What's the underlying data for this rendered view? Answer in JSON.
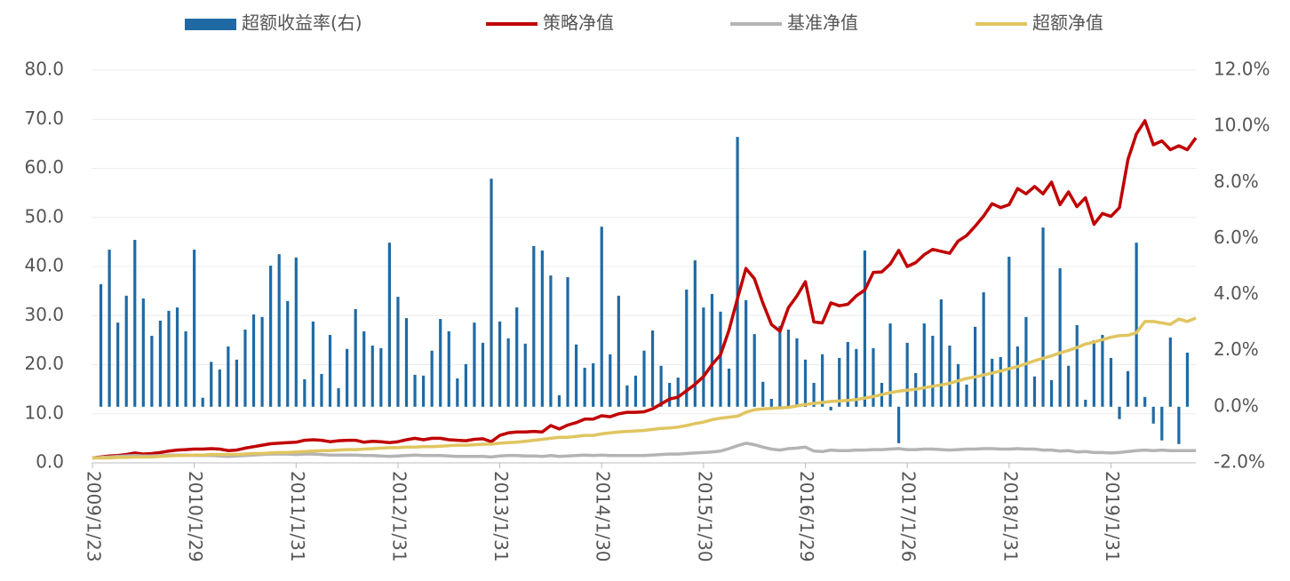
{
  "chart_data": {
    "type": "combo",
    "categories": [
      "2009/1/23",
      null,
      null,
      null,
      null,
      null,
      null,
      null,
      null,
      null,
      null,
      null,
      "2010/1/29",
      null,
      null,
      null,
      null,
      null,
      null,
      null,
      null,
      null,
      null,
      null,
      "2011/1/31",
      null,
      null,
      null,
      null,
      null,
      null,
      null,
      null,
      null,
      null,
      null,
      "2012/1/31",
      null,
      null,
      null,
      null,
      null,
      null,
      null,
      null,
      null,
      null,
      null,
      "2013/1/31",
      null,
      null,
      null,
      null,
      null,
      null,
      null,
      null,
      null,
      null,
      null,
      "2014/1/30",
      null,
      null,
      null,
      null,
      null,
      null,
      null,
      null,
      null,
      null,
      null,
      "2015/1/30",
      null,
      null,
      null,
      null,
      null,
      null,
      null,
      null,
      null,
      null,
      null,
      "2016/1/29",
      null,
      null,
      null,
      null,
      null,
      null,
      null,
      null,
      null,
      null,
      null,
      "2017/1/26",
      null,
      null,
      null,
      null,
      null,
      null,
      null,
      null,
      null,
      null,
      null,
      "2018/1/31",
      null,
      null,
      null,
      null,
      null,
      null,
      null,
      null,
      null,
      null,
      null,
      "2019/1/31",
      null,
      null,
      null,
      null,
      null,
      null,
      null,
      null,
      null,
      null
    ],
    "series": [
      {
        "name": "超额收益率(右)",
        "type": "bar",
        "axis": "y2",
        "color": "#1f6aa5",
        "values": [
          null,
          4.37,
          5.6,
          3.0,
          3.96,
          5.95,
          3.86,
          2.53,
          3.07,
          3.42,
          3.54,
          2.69,
          5.6,
          0.32,
          1.6,
          1.33,
          2.15,
          1.68,
          2.75,
          3.29,
          3.2,
          5.03,
          5.44,
          3.77,
          5.32,
          0.98,
          3.04,
          1.17,
          2.56,
          0.66,
          2.06,
          3.48,
          2.69,
          2.18,
          2.09,
          5.85,
          3.92,
          3.16,
          1.14,
          1.11,
          2.0,
          3.13,
          2.69,
          1.01,
          1.52,
          3.0,
          2.28,
          8.13,
          3.04,
          2.44,
          3.54,
          2.25,
          5.73,
          5.57,
          4.68,
          0.41,
          4.62,
          2.22,
          1.39,
          1.55,
          6.42,
          1.87,
          3.96,
          0.76,
          1.11,
          2.0,
          2.72,
          1.46,
          0.85,
          1.04,
          4.18,
          5.22,
          3.54,
          4.02,
          3.39,
          1.36,
          9.62,
          3.8,
          2.59,
          0.89,
          0.28,
          2.88,
          2.75,
          2.44,
          1.68,
          0.85,
          1.87,
          -0.13,
          1.74,
          2.31,
          2.06,
          5.57,
          2.09,
          0.85,
          2.97,
          -1.3,
          2.28,
          1.2,
          2.97,
          2.53,
          3.83,
          2.18,
          1.52,
          0.79,
          2.85,
          4.08,
          1.71,
          1.77,
          5.35,
          2.15,
          3.2,
          1.08,
          6.39,
          0.95,
          4.94,
          1.46,
          2.91,
          0.25,
          2.37,
          2.56,
          1.74,
          -0.44,
          1.27,
          5.85,
          0.35,
          -0.6,
          -1.2,
          2.47,
          -1.33,
          1.93,
          null
        ]
      },
      {
        "name": "策略净值",
        "type": "line",
        "color": "#c00000",
        "values": [
          1.0,
          1.2,
          1.4,
          1.5,
          1.7,
          2.0,
          1.8,
          1.9,
          2.1,
          2.4,
          2.6,
          2.7,
          2.8,
          2.8,
          2.9,
          2.8,
          2.5,
          2.6,
          3.0,
          3.3,
          3.6,
          3.9,
          4.0,
          4.1,
          4.2,
          4.6,
          4.7,
          4.6,
          4.3,
          4.5,
          4.6,
          4.6,
          4.2,
          4.4,
          4.3,
          4.1,
          4.3,
          4.7,
          5.0,
          4.7,
          5.0,
          5.0,
          4.7,
          4.6,
          4.5,
          4.8,
          4.9,
          4.3,
          5.6,
          6.1,
          6.3,
          6.3,
          6.4,
          6.3,
          7.6,
          6.9,
          7.7,
          8.2,
          8.9,
          8.9,
          9.6,
          9.4,
          10.0,
          10.3,
          10.3,
          10.4,
          11.0,
          12.0,
          13.0,
          13.4,
          14.7,
          16.0,
          17.6,
          20.0,
          22.0,
          27.0,
          33.5,
          39.6,
          37.5,
          32.5,
          28.2,
          26.8,
          31.6,
          34.0,
          36.9,
          28.7,
          28.5,
          32.6,
          32.0,
          32.3,
          34.0,
          35.2,
          38.8,
          38.9,
          40.5,
          43.3,
          40.0,
          40.8,
          42.4,
          43.5,
          43.1,
          42.7,
          45.2,
          46.3,
          48.2,
          50.3,
          52.8,
          52.0,
          52.6,
          55.9,
          54.8,
          56.3,
          54.8,
          57.2,
          52.6,
          55.2,
          52.2,
          54.0,
          48.6,
          50.8,
          50.2,
          52.0,
          61.8,
          67.0,
          69.7,
          64.8,
          65.6,
          63.8,
          64.6,
          63.8,
          66.2
        ]
      },
      {
        "name": "基准净值",
        "type": "line",
        "color": "#b4b4b4",
        "values": [
          1.0,
          1.1,
          1.2,
          1.3,
          1.4,
          1.5,
          1.4,
          1.4,
          1.5,
          1.6,
          1.6,
          1.6,
          1.5,
          1.5,
          1.5,
          1.4,
          1.3,
          1.4,
          1.5,
          1.6,
          1.7,
          1.8,
          1.8,
          1.8,
          1.7,
          1.8,
          1.8,
          1.7,
          1.6,
          1.6,
          1.6,
          1.6,
          1.5,
          1.5,
          1.4,
          1.3,
          1.4,
          1.5,
          1.6,
          1.5,
          1.5,
          1.5,
          1.4,
          1.3,
          1.3,
          1.3,
          1.3,
          1.2,
          1.4,
          1.5,
          1.5,
          1.4,
          1.4,
          1.3,
          1.5,
          1.3,
          1.4,
          1.5,
          1.6,
          1.5,
          1.6,
          1.5,
          1.5,
          1.5,
          1.5,
          1.5,
          1.6,
          1.7,
          1.8,
          1.8,
          1.9,
          2.0,
          2.1,
          2.2,
          2.4,
          2.9,
          3.5,
          4.0,
          3.7,
          3.2,
          2.8,
          2.6,
          2.9,
          3.0,
          3.2,
          2.4,
          2.3,
          2.6,
          2.5,
          2.5,
          2.6,
          2.6,
          2.7,
          2.7,
          2.8,
          2.9,
          2.7,
          2.7,
          2.8,
          2.8,
          2.7,
          2.6,
          2.7,
          2.8,
          2.8,
          2.9,
          2.9,
          2.8,
          2.8,
          2.9,
          2.8,
          2.8,
          2.6,
          2.6,
          2.4,
          2.5,
          2.2,
          2.3,
          2.1,
          2.1,
          2.0,
          2.1,
          2.3,
          2.5,
          2.6,
          2.5,
          2.6,
          2.5,
          2.5,
          2.5,
          2.5
        ]
      },
      {
        "name": "超额净值",
        "type": "line",
        "color": "#e0c560",
        "values": [
          1.0,
          1.0,
          1.0,
          1.1,
          1.1,
          1.2,
          1.2,
          1.2,
          1.3,
          1.4,
          1.5,
          1.5,
          1.6,
          1.6,
          1.7,
          1.7,
          1.7,
          1.7,
          1.8,
          1.9,
          1.9,
          2.0,
          2.1,
          2.1,
          2.2,
          2.3,
          2.4,
          2.5,
          2.5,
          2.6,
          2.7,
          2.7,
          2.8,
          2.9,
          3.0,
          3.1,
          3.1,
          3.2,
          3.2,
          3.3,
          3.3,
          3.4,
          3.5,
          3.6,
          3.6,
          3.7,
          3.8,
          3.8,
          4.0,
          4.1,
          4.2,
          4.4,
          4.6,
          4.8,
          5.0,
          5.2,
          5.2,
          5.4,
          5.6,
          5.6,
          5.9,
          6.1,
          6.3,
          6.4,
          6.5,
          6.6,
          6.8,
          7.0,
          7.1,
          7.3,
          7.6,
          8.0,
          8.3,
          8.8,
          9.1,
          9.3,
          9.5,
          10.3,
          10.8,
          11.0,
          11.1,
          11.2,
          11.3,
          11.6,
          11.9,
          12.1,
          12.3,
          12.5,
          12.6,
          12.7,
          12.9,
          13.2,
          13.5,
          13.9,
          14.3,
          14.6,
          14.8,
          15.0,
          15.3,
          15.6,
          15.9,
          16.2,
          16.7,
          17.2,
          17.5,
          17.9,
          18.3,
          18.7,
          19.2,
          19.6,
          20.2,
          20.8,
          21.3,
          21.8,
          22.4,
          22.9,
          23.5,
          24.2,
          24.6,
          25.1,
          25.6,
          25.9,
          26.0,
          26.5,
          28.8,
          28.8,
          28.5,
          28.2,
          29.3,
          28.8,
          29.5
        ]
      }
    ],
    "ylim": [
      0,
      80
    ],
    "yticks": [
      {
        "value": 0,
        "label": "0.0"
      },
      {
        "value": 10,
        "label": "10.0"
      },
      {
        "value": 20,
        "label": "20.0"
      },
      {
        "value": 30,
        "label": "30.0"
      },
      {
        "value": 40,
        "label": "40.0"
      },
      {
        "value": 50,
        "label": "50.0"
      },
      {
        "value": 60,
        "label": "60.0"
      },
      {
        "value": 70,
        "label": "70.0"
      },
      {
        "value": 80,
        "label": "80.0"
      }
    ],
    "y2lim": [
      -2,
      12
    ],
    "y2ticks": [
      {
        "value": -2,
        "label": "-2.0%"
      },
      {
        "value": 0,
        "label": "0.0%"
      },
      {
        "value": 2,
        "label": "2.0%"
      },
      {
        "value": 4,
        "label": "4.0%"
      },
      {
        "value": 6,
        "label": "6.0%"
      },
      {
        "value": 8,
        "label": "8.0%"
      },
      {
        "value": 10,
        "label": "10.0%"
      },
      {
        "value": 12,
        "label": "12.0%"
      }
    ],
    "grid": true,
    "legend": "top"
  }
}
